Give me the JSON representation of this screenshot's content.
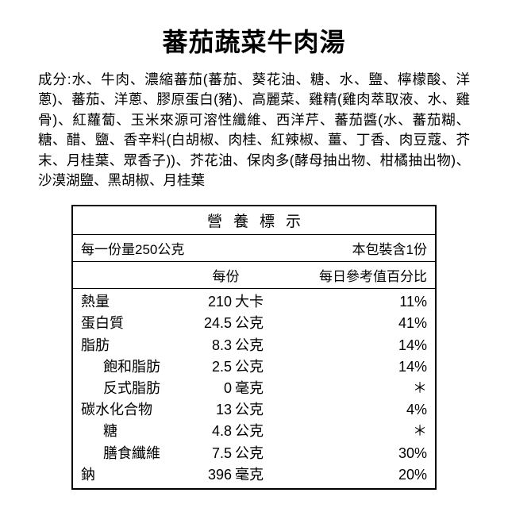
{
  "title": "蕃茄蔬菜牛肉湯",
  "ingredients_label": "成分:",
  "ingredients_text": "水、牛肉、濃縮蕃茄(蕃茄、葵花油、糖、水、鹽、檸檬酸、洋蔥)、蕃茄、洋蔥、膠原蛋白(豬)、高麗菜、雞精(雞肉萃取液、水、雞骨)、紅蘿蔔、玉米來源可溶性纖維、西洋芹、蕃茄醬(水、蕃茄糊、糖、醋、鹽、香辛料(白胡椒、肉桂、紅辣椒、薑、丁香、肉豆蔻、芥末、月桂葉、眾香子))、芥花油、保肉多(酵母抽出物、柑橘抽出物)、沙漠湖鹽、黑胡椒、月桂葉",
  "nutrition": {
    "header": "營養標示",
    "serving_size": "每一份量250公克",
    "servings_per": "本包裝含1份",
    "col_serving": "每份",
    "col_dv": "每日參考值百分比",
    "rows": [
      {
        "name": "熱量",
        "indent": false,
        "value": "210",
        "unit": "大卡",
        "dv": "11%"
      },
      {
        "name": "蛋白質",
        "indent": false,
        "value": "24.5",
        "unit": "公克",
        "dv": "41%"
      },
      {
        "name": "脂肪",
        "indent": false,
        "value": "8.3",
        "unit": "公克",
        "dv": "14%"
      },
      {
        "name": "飽和脂肪",
        "indent": true,
        "value": "2.5",
        "unit": "公克",
        "dv": "14%"
      },
      {
        "name": "反式脂肪",
        "indent": true,
        "value": "0",
        "unit": "毫克",
        "dv": "＊"
      },
      {
        "name": "碳水化合物",
        "indent": false,
        "value": "13",
        "unit": "公克",
        "dv": "4%"
      },
      {
        "name": "糖",
        "indent": true,
        "value": "4.8",
        "unit": "公克",
        "dv": "＊"
      },
      {
        "name": "膳食纖維",
        "indent": true,
        "value": "7.5",
        "unit": "公克",
        "dv": "30%"
      },
      {
        "name": "鈉",
        "indent": false,
        "value": "396",
        "unit": "毫克",
        "dv": "20%"
      }
    ]
  }
}
